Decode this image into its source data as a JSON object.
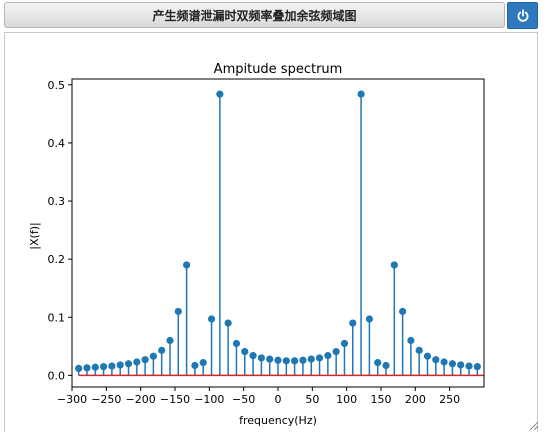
{
  "window": {
    "title": "产生频谱泄漏时双频率叠加余弦频域图"
  },
  "toolbar": {
    "power_icon": "power-icon"
  },
  "colors": {
    "stem": "#1f77b4",
    "baseline": "#d62728",
    "button": "#2f78bd"
  },
  "chart_data": {
    "type": "stem",
    "title": "Ampitude spectrum",
    "xlabel": "frequency(Hz)",
    "ylabel": "|X(f)|",
    "xlim": [
      -300,
      300
    ],
    "ylim": [
      -0.02,
      0.51
    ],
    "xticks": [
      -300,
      -250,
      -200,
      -150,
      -100,
      -50,
      0,
      50,
      100,
      150,
      200,
      250
    ],
    "xtick_labels": [
      "−300",
      "−250",
      "−200",
      "−150",
      "−100",
      "−50",
      "0",
      "50",
      "100",
      "150",
      "200",
      "250"
    ],
    "yticks": [
      0.0,
      0.1,
      0.2,
      0.3,
      0.4,
      0.5
    ],
    "ytick_labels": [
      "0.0",
      "0.1",
      "0.2",
      "0.3",
      "0.4",
      "0.5"
    ],
    "grid": false,
    "x": [
      -290.3,
      -278.2,
      -266.1,
      -254.0,
      -241.9,
      -229.8,
      -217.7,
      -205.6,
      -193.5,
      -181.5,
      -169.4,
      -157.3,
      -145.2,
      -133.1,
      -121.0,
      -108.9,
      -96.8,
      -84.7,
      -72.6,
      -60.5,
      -48.4,
      -36.3,
      -24.2,
      -12.1,
      0.0,
      12.1,
      24.2,
      36.3,
      48.4,
      60.5,
      72.6,
      84.7,
      96.8,
      108.9,
      121.0,
      133.1,
      145.2,
      157.3,
      169.4,
      181.5,
      193.5,
      205.6,
      217.7,
      229.8,
      241.9,
      254.0,
      266.1,
      278.2,
      290.3
    ],
    "y": [
      0.012,
      0.013,
      0.014,
      0.015,
      0.016,
      0.018,
      0.02,
      0.023,
      0.027,
      0.033,
      0.043,
      0.06,
      0.11,
      0.19,
      0.017,
      0.022,
      0.097,
      0.484,
      0.09,
      0.055,
      0.041,
      0.034,
      0.03,
      0.028,
      0.026,
      0.025,
      0.025,
      0.026,
      0.028,
      0.03,
      0.034,
      0.041,
      0.055,
      0.09,
      0.484,
      0.097,
      0.022,
      0.017,
      0.19,
      0.11,
      0.06,
      0.043,
      0.033,
      0.027,
      0.023,
      0.02,
      0.018,
      0.016,
      0.015
    ]
  }
}
